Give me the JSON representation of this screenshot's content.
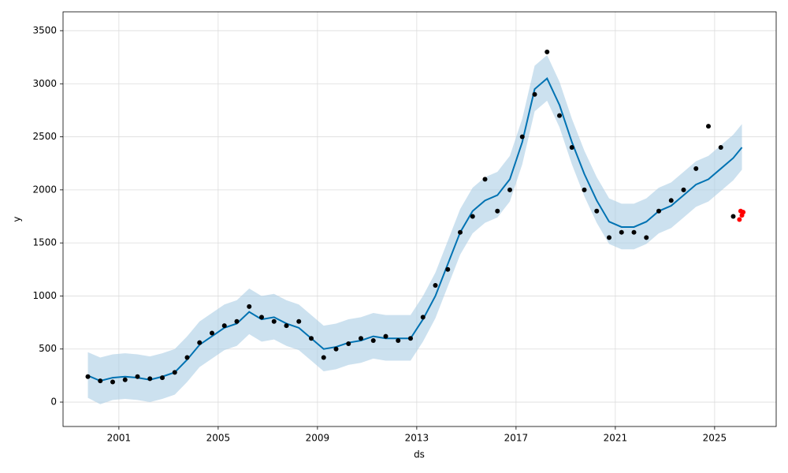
{
  "chart_data": {
    "type": "forecast",
    "xlabel": "ds",
    "ylabel": "y",
    "xlim": [
      1998.75,
      2027.48
    ],
    "ylim": [
      -230,
      3678
    ],
    "xticks": [
      2001,
      2005,
      2009,
      2013,
      2017,
      2021,
      2025
    ],
    "yticks": [
      0,
      500,
      1000,
      1500,
      2000,
      2500,
      3000,
      3500
    ],
    "grid": true,
    "band_color": "#aacde4",
    "series": [
      {
        "type": "scatter",
        "color": "#000000",
        "x": [
          1999.75,
          2000.25,
          2000.75,
          2001.25,
          2001.75,
          2002.25,
          2002.75,
          2003.25,
          2003.75,
          2004.25,
          2004.75,
          2005.25,
          2005.75,
          2006.25,
          2006.75,
          2007.25,
          2007.75,
          2008.25,
          2008.75,
          2009.25,
          2009.75,
          2010.25,
          2010.75,
          2011.25,
          2011.75,
          2012.25,
          2012.75,
          2013.25,
          2013.75,
          2014.25,
          2014.75,
          2015.25,
          2015.75,
          2016.25,
          2016.75,
          2017.25,
          2017.75,
          2018.25,
          2018.75,
          2019.25,
          2019.75,
          2020.25,
          2020.75,
          2021.25,
          2021.75,
          2022.25,
          2022.75,
          2023.25,
          2023.75,
          2024.25,
          2024.75,
          2025.25,
          2025.75
        ],
        "values": [
          240,
          200,
          190,
          210,
          240,
          220,
          230,
          280,
          420,
          560,
          650,
          720,
          760,
          900,
          800,
          760,
          720,
          760,
          600,
          420,
          500,
          550,
          600,
          580,
          620,
          580,
          600,
          800,
          1100,
          1250,
          1600,
          1750,
          2100,
          1800,
          2000,
          2500,
          2900,
          3300,
          2700,
          2400,
          2000,
          1800,
          1550,
          1600,
          1600,
          1550,
          1800,
          1900,
          2000,
          2200,
          2600,
          2400,
          1750
        ]
      },
      {
        "type": "line",
        "color": "#0072b2",
        "x": [
          1999.75,
          2000.25,
          2000.75,
          2001.25,
          2001.75,
          2002.25,
          2002.75,
          2003.25,
          2003.75,
          2004.25,
          2004.75,
          2005.25,
          2005.75,
          2006.25,
          2006.75,
          2007.25,
          2007.75,
          2008.25,
          2008.75,
          2009.25,
          2009.75,
          2010.25,
          2010.75,
          2011.25,
          2011.75,
          2012.25,
          2012.75,
          2013.25,
          2013.75,
          2014.25,
          2014.75,
          2015.25,
          2015.75,
          2016.25,
          2016.75,
          2017.25,
          2017.75,
          2018.25,
          2018.75,
          2019.25,
          2019.75,
          2020.25,
          2020.75,
          2021.25,
          2021.75,
          2022.25,
          2022.75,
          2023.25,
          2023.75,
          2024.25,
          2024.75,
          2025.25,
          2025.75,
          2026.1
        ],
        "values": [
          250,
          200,
          230,
          240,
          230,
          210,
          240,
          280,
          400,
          540,
          620,
          700,
          740,
          850,
          780,
          800,
          740,
          700,
          600,
          500,
          520,
          560,
          580,
          620,
          600,
          600,
          600,
          780,
          1000,
          1300,
          1600,
          1800,
          1900,
          1950,
          2100,
          2450,
          2950,
          3050,
          2800,
          2450,
          2150,
          1900,
          1700,
          1650,
          1650,
          1700,
          1800,
          1850,
          1950,
          2050,
          2100,
          2200,
          2300,
          2400
        ],
        "lower": [
          40,
          -20,
          20,
          30,
          20,
          0,
          30,
          70,
          190,
          330,
          410,
          490,
          530,
          640,
          570,
          590,
          530,
          490,
          390,
          290,
          310,
          350,
          370,
          410,
          390,
          390,
          390,
          570,
          790,
          1090,
          1390,
          1590,
          1690,
          1740,
          1890,
          2240,
          2740,
          2840,
          2590,
          2240,
          1940,
          1690,
          1490,
          1440,
          1440,
          1490,
          1590,
          1640,
          1740,
          1840,
          1890,
          1990,
          2090,
          2190
        ],
        "upper": [
          470,
          420,
          450,
          460,
          450,
          430,
          460,
          500,
          620,
          760,
          840,
          920,
          960,
          1070,
          1000,
          1020,
          960,
          920,
          820,
          720,
          740,
          780,
          800,
          840,
          820,
          820,
          820,
          1000,
          1220,
          1520,
          1820,
          2020,
          2120,
          2170,
          2320,
          2670,
          3170,
          3270,
          3020,
          2670,
          2370,
          2120,
          1920,
          1870,
          1870,
          1920,
          2020,
          2070,
          2170,
          2270,
          2320,
          2420,
          2520,
          2620
        ]
      },
      {
        "type": "scatter",
        "color": "#ff0000",
        "x": [
          2026.0,
          2026.05,
          2026.1,
          2026.15
        ],
        "values": [
          1720,
          1800,
          1760,
          1790
        ]
      }
    ]
  }
}
